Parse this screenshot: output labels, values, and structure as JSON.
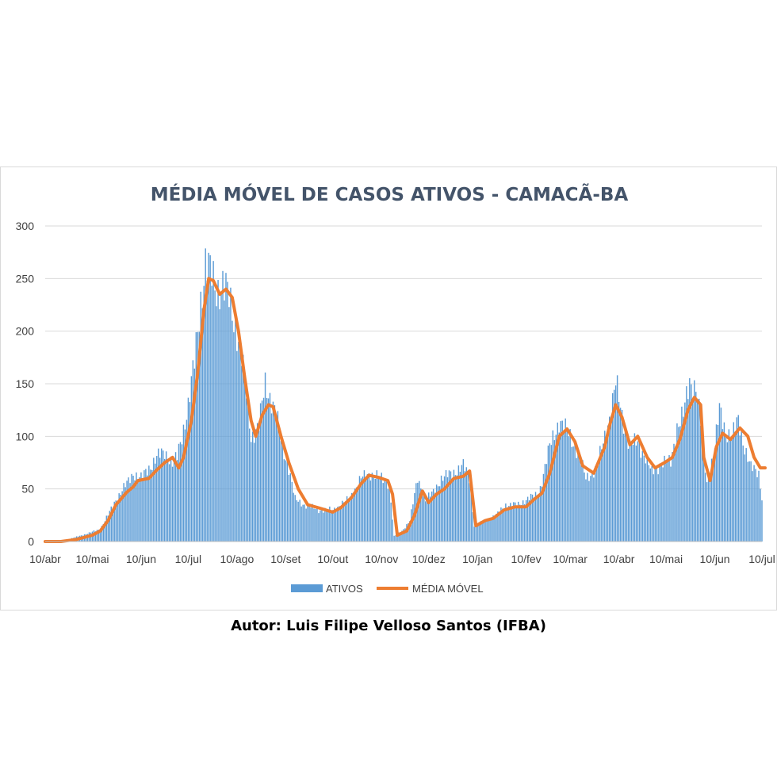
{
  "author": "Autor: Luis Filipe Velloso Santos (IFBA)",
  "chart_data": {
    "type": "bar",
    "title": "MÉDIA MÓVEL DE CASOS ATIVOS - CAMACÃ-BA",
    "xlabel": "",
    "ylabel": "",
    "ylim": [
      0,
      300
    ],
    "yticks": [
      0,
      50,
      100,
      150,
      200,
      250,
      300
    ],
    "grid": true,
    "legend": "bottom",
    "x_tick_labels": [
      "10/abr",
      "10/mai",
      "10/jun",
      "10/jul",
      "10/ago",
      "10/set",
      "10/out",
      "10/nov",
      "10/dez",
      "10/jan",
      "10/fev",
      "10/mar",
      "10/abr",
      "10/mai",
      "10/jun",
      "10/jul"
    ],
    "x_tick_dates": [
      "2020-04-10",
      "2020-05-10",
      "2020-06-10",
      "2020-07-10",
      "2020-08-10",
      "2020-09-10",
      "2020-10-10",
      "2020-11-10",
      "2020-12-10",
      "2021-01-10",
      "2021-02-10",
      "2021-03-10",
      "2021-04-10",
      "2021-05-10",
      "2021-06-10",
      "2021-07-10"
    ],
    "colors": {
      "ativos": "#5b9bd5",
      "media_movel": "#ed7d31"
    },
    "series": [
      {
        "name": "ATIVOS",
        "type": "bar",
        "points": [
          [
            "2020-04-10",
            0
          ],
          [
            "2020-04-20",
            0
          ],
          [
            "2020-04-25",
            2
          ],
          [
            "2020-05-01",
            5
          ],
          [
            "2020-05-08",
            8
          ],
          [
            "2020-05-15",
            12
          ],
          [
            "2020-05-20",
            25
          ],
          [
            "2020-05-25",
            40
          ],
          [
            "2020-06-01",
            55
          ],
          [
            "2020-06-05",
            65
          ],
          [
            "2020-06-10",
            60
          ],
          [
            "2020-06-15",
            70
          ],
          [
            "2020-06-20",
            80
          ],
          [
            "2020-06-25",
            85
          ],
          [
            "2020-06-30",
            75
          ],
          [
            "2020-07-03",
            80
          ],
          [
            "2020-07-06",
            100
          ],
          [
            "2020-07-10",
            130
          ],
          [
            "2020-07-14",
            170
          ],
          [
            "2020-07-18",
            230
          ],
          [
            "2020-07-21",
            265
          ],
          [
            "2020-07-24",
            255
          ],
          [
            "2020-07-28",
            240
          ],
          [
            "2020-08-01",
            245
          ],
          [
            "2020-08-05",
            230
          ],
          [
            "2020-08-10",
            200
          ],
          [
            "2020-08-13",
            175
          ],
          [
            "2020-08-16",
            140
          ],
          [
            "2020-08-19",
            100
          ],
          [
            "2020-08-24",
            110
          ],
          [
            "2020-08-28",
            150
          ],
          [
            "2020-09-01",
            135
          ],
          [
            "2020-09-04",
            120
          ],
          [
            "2020-09-08",
            90
          ],
          [
            "2020-09-12",
            70
          ],
          [
            "2020-09-16",
            40
          ],
          [
            "2020-09-22",
            35
          ],
          [
            "2020-10-01",
            30
          ],
          [
            "2020-10-10",
            30
          ],
          [
            "2020-10-20",
            40
          ],
          [
            "2020-10-28",
            60
          ],
          [
            "2020-11-03",
            65
          ],
          [
            "2020-11-10",
            60
          ],
          [
            "2020-11-15",
            55
          ],
          [
            "2020-11-18",
            5
          ],
          [
            "2020-11-23",
            10
          ],
          [
            "2020-11-28",
            20
          ],
          [
            "2020-12-03",
            60
          ],
          [
            "2020-12-08",
            40
          ],
          [
            "2020-12-12",
            45
          ],
          [
            "2020-12-18",
            60
          ],
          [
            "2020-12-25",
            65
          ],
          [
            "2021-01-01",
            72
          ],
          [
            "2021-01-05",
            60
          ],
          [
            "2021-01-08",
            15
          ],
          [
            "2021-01-15",
            20
          ],
          [
            "2021-01-22",
            25
          ],
          [
            "2021-01-28",
            35
          ],
          [
            "2021-02-05",
            35
          ],
          [
            "2021-02-10",
            40
          ],
          [
            "2021-02-18",
            45
          ],
          [
            "2021-02-25",
            90
          ],
          [
            "2021-03-03",
            115
          ],
          [
            "2021-03-10",
            100
          ],
          [
            "2021-03-15",
            85
          ],
          [
            "2021-03-20",
            60
          ],
          [
            "2021-03-27",
            70
          ],
          [
            "2021-04-01",
            100
          ],
          [
            "2021-04-05",
            125
          ],
          [
            "2021-04-08",
            150
          ],
          [
            "2021-04-12",
            120
          ],
          [
            "2021-04-17",
            90
          ],
          [
            "2021-04-22",
            95
          ],
          [
            "2021-04-27",
            80
          ],
          [
            "2021-05-01",
            65
          ],
          [
            "2021-05-07",
            75
          ],
          [
            "2021-05-13",
            75
          ],
          [
            "2021-05-17",
            110
          ],
          [
            "2021-05-21",
            120
          ],
          [
            "2021-05-25",
            152
          ],
          [
            "2021-05-29",
            148
          ],
          [
            "2021-06-02",
            100
          ],
          [
            "2021-06-05",
            55
          ],
          [
            "2021-06-10",
            90
          ],
          [
            "2021-06-13",
            125
          ],
          [
            "2021-06-17",
            105
          ],
          [
            "2021-06-21",
            100
          ],
          [
            "2021-06-25",
            115
          ],
          [
            "2021-06-29",
            90
          ],
          [
            "2021-07-03",
            70
          ],
          [
            "2021-07-08",
            65
          ],
          [
            "2021-07-10",
            42
          ]
        ]
      },
      {
        "name": "MÉDIA MÓVEL",
        "type": "line",
        "points": [
          [
            "2020-04-10",
            0
          ],
          [
            "2020-04-20",
            0
          ],
          [
            "2020-04-30",
            2
          ],
          [
            "2020-05-10",
            6
          ],
          [
            "2020-05-15",
            10
          ],
          [
            "2020-05-20",
            20
          ],
          [
            "2020-05-25",
            35
          ],
          [
            "2020-06-01",
            47
          ],
          [
            "2020-06-05",
            52
          ],
          [
            "2020-06-08",
            58
          ],
          [
            "2020-06-15",
            60
          ],
          [
            "2020-06-20",
            68
          ],
          [
            "2020-06-25",
            75
          ],
          [
            "2020-06-30",
            80
          ],
          [
            "2020-07-04",
            70
          ],
          [
            "2020-07-07",
            80
          ],
          [
            "2020-07-12",
            115
          ],
          [
            "2020-07-16",
            160
          ],
          [
            "2020-07-20",
            220
          ],
          [
            "2020-07-23",
            250
          ],
          [
            "2020-07-26",
            248
          ],
          [
            "2020-07-30",
            235
          ],
          [
            "2020-08-03",
            240
          ],
          [
            "2020-08-07",
            232
          ],
          [
            "2020-08-11",
            200
          ],
          [
            "2020-08-15",
            155
          ],
          [
            "2020-08-19",
            115
          ],
          [
            "2020-08-22",
            100
          ],
          [
            "2020-08-26",
            120
          ],
          [
            "2020-08-30",
            130
          ],
          [
            "2020-09-02",
            128
          ],
          [
            "2020-09-07",
            100
          ],
          [
            "2020-09-12",
            75
          ],
          [
            "2020-09-18",
            50
          ],
          [
            "2020-09-24",
            35
          ],
          [
            "2020-10-01",
            32
          ],
          [
            "2020-10-10",
            28
          ],
          [
            "2020-10-15",
            32
          ],
          [
            "2020-10-22",
            42
          ],
          [
            "2020-10-28",
            55
          ],
          [
            "2020-11-02",
            63
          ],
          [
            "2020-11-08",
            61
          ],
          [
            "2020-11-14",
            58
          ],
          [
            "2020-11-17",
            45
          ],
          [
            "2020-11-20",
            6
          ],
          [
            "2020-11-26",
            10
          ],
          [
            "2020-12-01",
            25
          ],
          [
            "2020-12-06",
            48
          ],
          [
            "2020-12-10",
            37
          ],
          [
            "2020-12-15",
            45
          ],
          [
            "2020-12-20",
            50
          ],
          [
            "2020-12-26",
            60
          ],
          [
            "2021-01-01",
            62
          ],
          [
            "2021-01-05",
            67
          ],
          [
            "2021-01-09",
            15
          ],
          [
            "2021-01-15",
            20
          ],
          [
            "2021-01-20",
            22
          ],
          [
            "2021-01-27",
            30
          ],
          [
            "2021-02-03",
            33
          ],
          [
            "2021-02-10",
            33
          ],
          [
            "2021-02-15",
            40
          ],
          [
            "2021-02-20",
            46
          ],
          [
            "2021-02-25",
            65
          ],
          [
            "2021-03-03",
            100
          ],
          [
            "2021-03-08",
            107
          ],
          [
            "2021-03-13",
            95
          ],
          [
            "2021-03-18",
            72
          ],
          [
            "2021-03-25",
            65
          ],
          [
            "2021-04-01",
            90
          ],
          [
            "2021-04-04",
            110
          ],
          [
            "2021-04-08",
            130
          ],
          [
            "2021-04-12",
            118
          ],
          [
            "2021-04-17",
            92
          ],
          [
            "2021-04-22",
            100
          ],
          [
            "2021-04-28",
            80
          ],
          [
            "2021-05-03",
            70
          ],
          [
            "2021-05-09",
            75
          ],
          [
            "2021-05-14",
            80
          ],
          [
            "2021-05-19",
            98
          ],
          [
            "2021-05-24",
            125
          ],
          [
            "2021-05-28",
            137
          ],
          [
            "2021-06-01",
            130
          ],
          [
            "2021-06-03",
            80
          ],
          [
            "2021-06-07",
            58
          ],
          [
            "2021-06-11",
            90
          ],
          [
            "2021-06-15",
            103
          ],
          [
            "2021-06-20",
            97
          ],
          [
            "2021-06-26",
            108
          ],
          [
            "2021-07-01",
            100
          ],
          [
            "2021-07-05",
            80
          ],
          [
            "2021-07-09",
            70
          ],
          [
            "2021-07-12",
            70
          ]
        ]
      }
    ]
  }
}
